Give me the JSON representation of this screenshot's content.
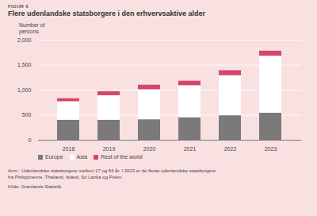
{
  "chart_data": {
    "type": "bar",
    "figure_label": "FIGUR 6",
    "title": "Flere udenlandske statsborgere i den erhvervsaktive alder",
    "ylabel": "Number of persons",
    "categories": [
      "2018",
      "2019",
      "2020",
      "2021",
      "2022",
      "2023"
    ],
    "series": [
      {
        "name": "Europe",
        "color": "#7b7979",
        "values": [
          400,
          400,
          410,
          450,
          490,
          540
        ]
      },
      {
        "name": "Asia",
        "color": "#ffffff",
        "values": [
          370,
          490,
          600,
          640,
          800,
          1140
        ]
      },
      {
        "name": "Rest of the world",
        "color": "#d5456c",
        "values": [
          60,
          80,
          90,
          90,
          100,
          100
        ]
      }
    ],
    "stacked": true,
    "ylim": [
      0,
      2000
    ],
    "yticks": [
      0,
      500,
      {
        "value": 1000,
        "label": "1,000"
      },
      {
        "value": 1500,
        "label": "1,500"
      },
      {
        "value": 2000,
        "label": "2,000"
      }
    ],
    "grid": true,
    "legend": "bottom",
    "note": "Anm.: Udenlandske statsborgere mellem 17 og 64 år. I 2023 er de fleste udenlandske statsborgere fra Philippinerne, Thailand, Island, Sri Lanka og Polen.",
    "source": "Kilde: Grønlands Statistik."
  }
}
